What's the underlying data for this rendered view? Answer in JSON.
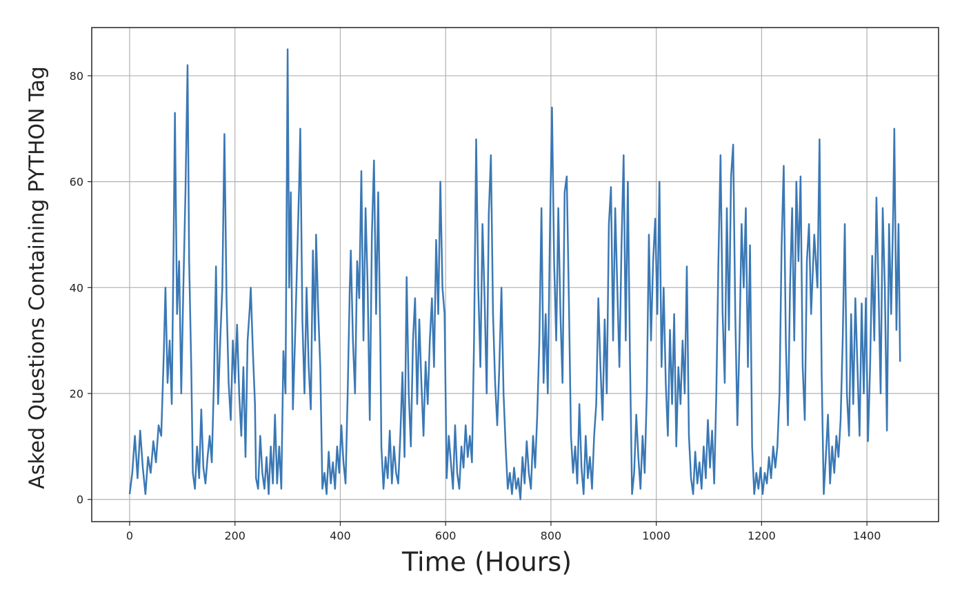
{
  "chart_data": {
    "type": "line",
    "x_label": "Time (Hours)",
    "y_label": "Asked Questions Containing PYTHON Tag",
    "color": "#3a78b5",
    "grid": true,
    "xlim": [
      -72,
      1536
    ],
    "ylim": [
      -4.2,
      89.1
    ],
    "xticks": [
      0,
      200,
      400,
      600,
      800,
      1000,
      1200,
      1400
    ],
    "yticks": [
      0,
      20,
      40,
      60,
      80
    ],
    "x": [
      0,
      5,
      10,
      15,
      20,
      25,
      30,
      35,
      40,
      45,
      50,
      55,
      60,
      65,
      68,
      72,
      76,
      80,
      84,
      86,
      90,
      94,
      98,
      102,
      106,
      110,
      113,
      117,
      120,
      124,
      128,
      132,
      136,
      140,
      144,
      148,
      152,
      156,
      160,
      164,
      168,
      172,
      176,
      180,
      184,
      188,
      192,
      196,
      200,
      204,
      208,
      212,
      216,
      220,
      224,
      228,
      230,
      234,
      238,
      240,
      244,
      248,
      252,
      256,
      260,
      264,
      268,
      272,
      276,
      280,
      284,
      288,
      292,
      296,
      300,
      303,
      306,
      310,
      314,
      318,
      322,
      324,
      328,
      332,
      336,
      340,
      344,
      348,
      352,
      354,
      358,
      362,
      366,
      370,
      374,
      378,
      382,
      386,
      390,
      394,
      398,
      402,
      406,
      410,
      414,
      418,
      420,
      424,
      428,
      432,
      436,
      440,
      444,
      448,
      452,
      456,
      460,
      464,
      468,
      472,
      476,
      478,
      482,
      486,
      490,
      494,
      498,
      502,
      506,
      510,
      514,
      518,
      522,
      526,
      530,
      534,
      538,
      542,
      546,
      550,
      554,
      558,
      562,
      566,
      570,
      574,
      578,
      582,
      586,
      590,
      594,
      598,
      602,
      606,
      610,
      614,
      618,
      622,
      626,
      630,
      634,
      638,
      642,
      646,
      650,
      654,
      658,
      662,
      666,
      670,
      674,
      678,
      682,
      686,
      690,
      694,
      698,
      702,
      706,
      710,
      714,
      718,
      722,
      726,
      730,
      734,
      738,
      742,
      746,
      750,
      754,
      758,
      762,
      766,
      770,
      774,
      778,
      782,
      786,
      790,
      794,
      798,
      802,
      806,
      810,
      814,
      818,
      822,
      826,
      830,
      834,
      838,
      842,
      846,
      850,
      854,
      858,
      862,
      866,
      870,
      874,
      878,
      882,
      886,
      890,
      894,
      898,
      902,
      906,
      910,
      914,
      918,
      922,
      926,
      930,
      934,
      938,
      942,
      946,
      950,
      954,
      958,
      962,
      966,
      970,
      974,
      978,
      982,
      986,
      990,
      994,
      998,
      1002,
      1006,
      1010,
      1014,
      1018,
      1022,
      1026,
      1030,
      1034,
      1038,
      1042,
      1046,
      1050,
      1054,
      1058,
      1062,
      1066,
      1070,
      1074,
      1078,
      1082,
      1086,
      1090,
      1094,
      1098,
      1102,
      1106,
      1110,
      1114,
      1118,
      1122,
      1126,
      1130,
      1134,
      1138,
      1142,
      1146,
      1150,
      1154,
      1158,
      1162,
      1166,
      1170,
      1174,
      1178,
      1182,
      1186,
      1190,
      1194,
      1198,
      1202,
      1206,
      1210,
      1214,
      1218,
      1222,
      1226,
      1230,
      1234,
      1238,
      1242,
      1246,
      1250,
      1254,
      1258,
      1262,
      1266,
      1270,
      1274,
      1278,
      1282,
      1286,
      1290,
      1294,
      1300,
      1306,
      1310,
      1314,
      1318,
      1322,
      1326,
      1330,
      1334,
      1338,
      1342,
      1346,
      1350,
      1354,
      1358,
      1362,
      1366,
      1370,
      1374,
      1378,
      1382,
      1386,
      1390,
      1394,
      1398,
      1402,
      1406,
      1410,
      1414,
      1418,
      1422,
      1426,
      1430,
      1434,
      1438,
      1442,
      1446,
      1450,
      1452,
      1456,
      1460,
      1463
    ],
    "values": [
      1,
      5,
      12,
      4,
      13,
      6,
      1,
      8,
      5,
      11,
      7,
      14,
      12,
      28,
      40,
      22,
      30,
      18,
      53,
      73,
      35,
      45,
      20,
      40,
      58,
      82,
      45,
      25,
      5,
      2,
      10,
      4,
      17,
      6,
      3,
      8,
      12,
      7,
      22,
      44,
      18,
      30,
      40,
      69,
      38,
      22,
      15,
      30,
      22,
      33,
      20,
      12,
      25,
      8,
      30,
      36,
      40,
      28,
      18,
      4,
      2,
      12,
      5,
      2,
      8,
      1,
      10,
      3,
      16,
      3,
      10,
      2,
      28,
      20,
      85,
      40,
      58,
      17,
      30,
      45,
      60,
      70,
      34,
      20,
      40,
      25,
      17,
      47,
      30,
      50,
      36,
      25,
      2,
      5,
      1,
      9,
      3,
      7,
      2,
      10,
      5,
      14,
      7,
      3,
      20,
      40,
      47,
      30,
      20,
      45,
      38,
      62,
      30,
      55,
      40,
      15,
      50,
      64,
      35,
      58,
      30,
      10,
      2,
      8,
      4,
      13,
      3,
      10,
      5,
      3,
      12,
      24,
      8,
      42,
      20,
      10,
      30,
      38,
      18,
      34,
      22,
      12,
      26,
      18,
      30,
      38,
      25,
      49,
      35,
      60,
      40,
      35,
      4,
      12,
      7,
      2,
      14,
      5,
      2,
      10,
      6,
      14,
      8,
      12,
      7,
      30,
      68,
      40,
      25,
      52,
      38,
      20,
      54,
      65,
      35,
      22,
      14,
      25,
      40,
      20,
      10,
      2,
      5,
      1,
      6,
      2,
      4,
      0,
      8,
      3,
      11,
      5,
      2,
      12,
      6,
      16,
      30,
      55,
      22,
      35,
      20,
      50,
      74,
      45,
      30,
      55,
      35,
      22,
      58,
      61,
      38,
      12,
      5,
      10,
      3,
      18,
      6,
      1,
      12,
      4,
      8,
      2,
      12,
      18,
      38,
      25,
      15,
      34,
      20,
      52,
      59,
      30,
      55,
      40,
      25,
      48,
      65,
      30,
      60,
      27,
      1,
      5,
      16,
      8,
      2,
      12,
      5,
      20,
      50,
      30,
      45,
      53,
      35,
      60,
      25,
      40,
      22,
      12,
      32,
      18,
      35,
      10,
      25,
      18,
      30,
      20,
      44,
      12,
      4,
      1,
      9,
      3,
      7,
      2,
      10,
      4,
      15,
      6,
      13,
      3,
      20,
      45,
      65,
      35,
      22,
      55,
      32,
      61,
      67,
      35,
      14,
      30,
      52,
      40,
      55,
      25,
      48,
      10,
      1,
      5,
      2,
      6,
      1,
      5,
      3,
      8,
      4,
      10,
      6,
      10,
      20,
      48,
      63,
      30,
      14,
      40,
      55,
      30,
      60,
      45,
      61,
      25,
      15,
      45,
      52,
      35,
      50,
      40,
      68,
      24,
      1,
      8,
      16,
      3,
      10,
      5,
      12,
      8,
      15,
      30,
      52,
      20,
      12,
      35,
      18,
      38,
      25,
      12,
      37,
      20,
      38,
      11,
      25,
      46,
      30,
      57,
      40,
      20,
      55,
      40,
      13,
      52,
      35,
      55,
      70,
      32,
      52,
      26
    ]
  }
}
